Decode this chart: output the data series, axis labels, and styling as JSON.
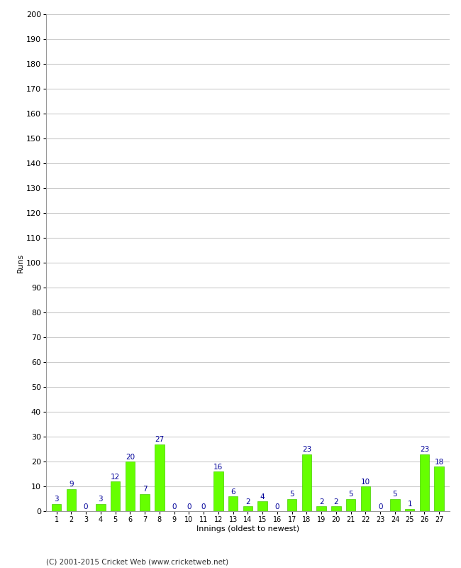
{
  "innings": [
    1,
    2,
    3,
    4,
    5,
    6,
    7,
    8,
    9,
    10,
    11,
    12,
    13,
    14,
    15,
    16,
    17,
    18,
    19,
    20,
    21,
    22,
    23,
    24,
    25,
    26,
    27
  ],
  "runs": [
    3,
    9,
    0,
    3,
    12,
    20,
    7,
    27,
    0,
    0,
    0,
    16,
    6,
    2,
    4,
    0,
    5,
    23,
    2,
    2,
    5,
    10,
    0,
    5,
    1,
    23,
    18
  ],
  "bar_color": "#66ff00",
  "bar_edge_color": "#44cc00",
  "label_color": "#000099",
  "xlabel": "Innings (oldest to newest)",
  "ylabel": "Runs",
  "ylim": [
    0,
    200
  ],
  "yticks": [
    0,
    10,
    20,
    30,
    40,
    50,
    60,
    70,
    80,
    90,
    100,
    110,
    120,
    130,
    140,
    150,
    160,
    170,
    180,
    190,
    200
  ],
  "footer": "(C) 2001-2015 Cricket Web (www.cricketweb.net)",
  "background_color": "#ffffff",
  "grid_color": "#cccccc",
  "label_fontsize": 7.5,
  "axis_tick_fontsize": 8,
  "axis_label_fontsize": 8,
  "footer_fontsize": 7.5,
  "bar_width": 0.65
}
